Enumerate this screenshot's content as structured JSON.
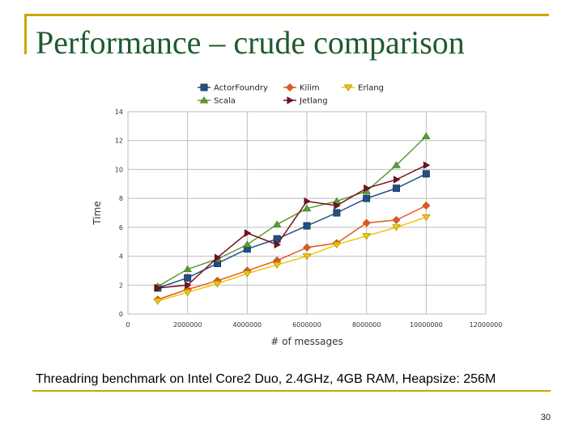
{
  "slide": {
    "title": "Performance – crude comparison",
    "caption": "Threadring benchmark on Intel Core2 Duo, 2.4GHz, 4GB RAM, Heapsize: 256M",
    "page_number": "30",
    "accent_color": "#c9a800",
    "title_color": "#1f5a2e"
  },
  "chart_data": {
    "type": "line",
    "title": "",
    "xlabel": "# of messages",
    "ylabel": "Time",
    "xlim": [
      0,
      12000000
    ],
    "ylim": [
      0,
      14
    ],
    "x_ticks": [
      0,
      2000000,
      4000000,
      6000000,
      8000000,
      10000000,
      12000000
    ],
    "x_tick_labels": [
      "0",
      "2000000",
      "4000000",
      "6000000",
      "8000000",
      "10000000",
      "12000000"
    ],
    "y_ticks": [
      0,
      2,
      4,
      6,
      8,
      10,
      12,
      14
    ],
    "y_tick_labels": [
      "0",
      "2",
      "4",
      "6",
      "8",
      "10",
      "12",
      "14"
    ],
    "grid": true,
    "legend_position": "top",
    "x": [
      1000000,
      2000000,
      3000000,
      4000000,
      5000000,
      6000000,
      7000000,
      8000000,
      9000000,
      10000000
    ],
    "series": [
      {
        "name": "ActorFoundry",
        "color": "#1f4e8c",
        "marker": "square",
        "values": [
          1.8,
          2.5,
          3.5,
          4.5,
          5.2,
          6.1,
          7.0,
          8.0,
          8.7,
          9.7
        ]
      },
      {
        "name": "Kilim",
        "color": "#e05a1e",
        "marker": "diamond",
        "values": [
          1.0,
          1.7,
          2.3,
          3.0,
          3.7,
          4.6,
          4.9,
          6.3,
          6.5,
          7.5
        ]
      },
      {
        "name": "Erlang",
        "color": "#f2c500",
        "marker": "triangle-down",
        "values": [
          0.9,
          1.5,
          2.1,
          2.8,
          3.4,
          4.0,
          4.8,
          5.4,
          6.0,
          6.7
        ]
      },
      {
        "name": "Scala",
        "color": "#5a9e2f",
        "marker": "triangle-up",
        "values": [
          1.9,
          3.1,
          3.8,
          4.8,
          6.2,
          7.3,
          7.8,
          8.5,
          10.3,
          12.3
        ]
      },
      {
        "name": "Jetlang",
        "color": "#7a1020",
        "marker": "triangle-right",
        "values": [
          1.8,
          2.0,
          3.9,
          5.6,
          4.8,
          7.8,
          7.5,
          8.7,
          9.3,
          10.3
        ]
      }
    ]
  }
}
